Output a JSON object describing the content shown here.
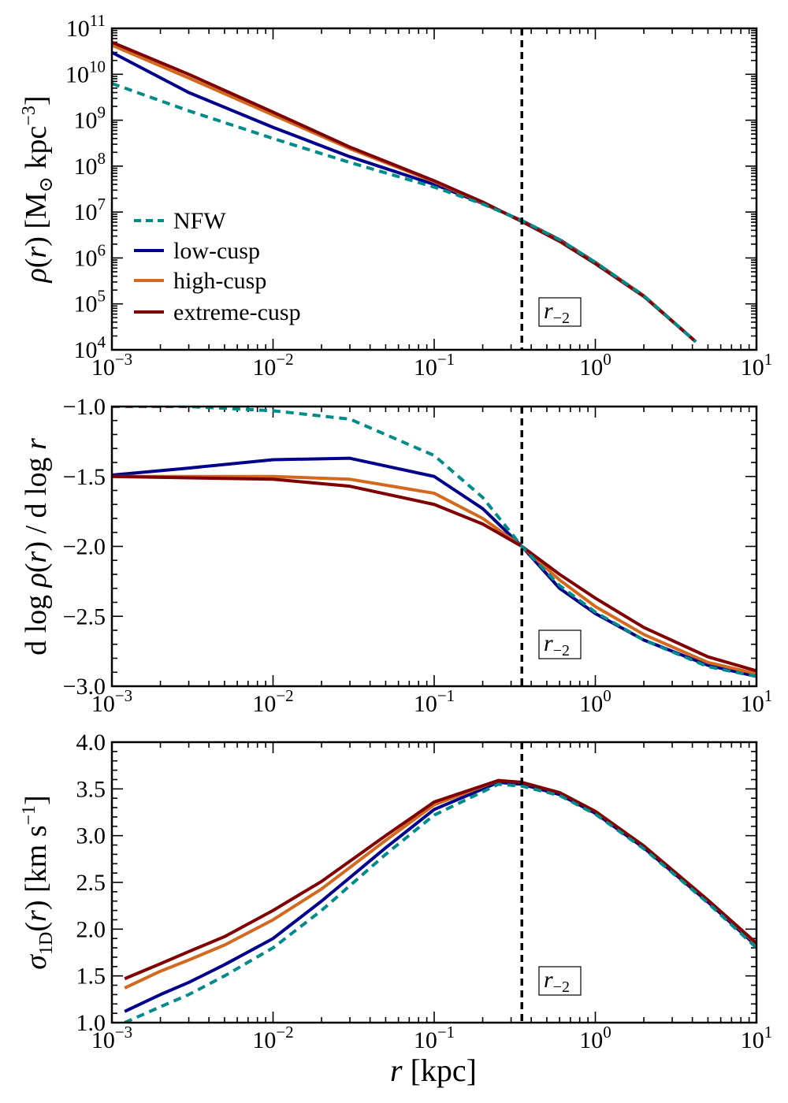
{
  "figure": {
    "xlabel_var": "r",
    "xlabel_unit": " [kpc]",
    "marker_label_main": "r",
    "marker_label_sub": "−2",
    "marker_r": 0.35
  },
  "colors": {
    "NFW": "#008b8b",
    "low-cusp": "#00008b",
    "high-cusp": "#d2691e",
    "extreme-cusp": "#800000"
  },
  "legend": [
    {
      "key": "NFW",
      "label": "NFW",
      "dashed": true
    },
    {
      "key": "low-cusp",
      "label": "low-cusp",
      "dashed": false
    },
    {
      "key": "high-cusp",
      "label": "high-cusp",
      "dashed": false
    },
    {
      "key": "extreme-cusp",
      "label": "extreme-cusp",
      "dashed": false
    }
  ],
  "chart_data": [
    {
      "type": "line",
      "title": "",
      "xscale": "log",
      "yscale": "log",
      "xlim": [
        0.001,
        10
      ],
      "ylim": [
        10000,
        100000000000
      ],
      "ylabel": "ρ(r) [M⊙ kpc−3]",
      "xticks": [
        {
          "base": "10",
          "exp": "−3"
        },
        {
          "base": "10",
          "exp": "−2"
        },
        {
          "base": "10",
          "exp": "−1"
        },
        {
          "base": "10",
          "exp": "0"
        },
        {
          "base": "10",
          "exp": "1"
        }
      ],
      "yticks": [
        {
          "base": "10",
          "exp": "4"
        },
        {
          "base": "10",
          "exp": "5"
        },
        {
          "base": "10",
          "exp": "6"
        },
        {
          "base": "10",
          "exp": "7"
        },
        {
          "base": "10",
          "exp": "8"
        },
        {
          "base": "10",
          "exp": "9"
        },
        {
          "base": "10",
          "exp": "10"
        },
        {
          "base": "10",
          "exp": "11"
        }
      ],
      "x": [
        0.001,
        0.003,
        0.01,
        0.03,
        0.1,
        0.2,
        0.35,
        0.6,
        1,
        2,
        4.2
      ],
      "series": [
        {
          "name": "NFW",
          "values": [
            6300000000.0,
            1600000000.0,
            400000000.0,
            120000000.0,
            35000000.0,
            15000000.0,
            6500000.0,
            2500000.0,
            800000.0,
            150000.0,
            15000.0
          ]
        },
        {
          "name": "low-cusp",
          "values": [
            30000000000.0,
            4000000000.0,
            700000000.0,
            160000000.0,
            40000000.0,
            15500000.0,
            6500000.0,
            2500000.0,
            800000.0,
            150000.0,
            15000.0
          ]
        },
        {
          "name": "high-cusp",
          "values": [
            43000000000.0,
            8300000000.0,
            1300000000.0,
            240000000.0,
            46000000.0,
            16000000.0,
            6300000.0,
            2400000.0,
            780000.0,
            150000.0,
            15000.0
          ]
        },
        {
          "name": "extreme-cusp",
          "values": [
            50000000000.0,
            10000000000.0,
            1500000000.0,
            260000000.0,
            48000000.0,
            16500000.0,
            6200000.0,
            2300000.0,
            750000.0,
            145000.0,
            15000.0
          ]
        }
      ]
    },
    {
      "type": "line",
      "title": "",
      "xscale": "log",
      "yscale": "linear",
      "xlim": [
        0.001,
        10
      ],
      "ylim": [
        -3.0,
        -1.0
      ],
      "ylabel": "d log ρ(r) / d log r",
      "xticks": [
        {
          "base": "10",
          "exp": "−3"
        },
        {
          "base": "10",
          "exp": "−2"
        },
        {
          "base": "10",
          "exp": "−1"
        },
        {
          "base": "10",
          "exp": "0"
        },
        {
          "base": "10",
          "exp": "1"
        }
      ],
      "yticks": [
        {
          "value": -3.0,
          "label": "−3.0"
        },
        {
          "value": -2.5,
          "label": "−2.5"
        },
        {
          "value": -2.0,
          "label": "−2.0"
        },
        {
          "value": -1.5,
          "label": "−1.5"
        },
        {
          "value": -1.0,
          "label": "−1.0"
        }
      ],
      "x": [
        0.001,
        0.003,
        0.01,
        0.03,
        0.1,
        0.2,
        0.35,
        0.6,
        1,
        2,
        5,
        10
      ],
      "series": [
        {
          "name": "NFW",
          "values": [
            -1.0,
            -1.0,
            -1.03,
            -1.09,
            -1.35,
            -1.65,
            -2.0,
            -2.28,
            -2.47,
            -2.67,
            -2.86,
            -2.93
          ]
        },
        {
          "name": "low-cusp",
          "values": [
            -1.49,
            -1.44,
            -1.38,
            -1.37,
            -1.5,
            -1.73,
            -2.0,
            -2.3,
            -2.48,
            -2.67,
            -2.85,
            -2.93
          ]
        },
        {
          "name": "high-cusp",
          "values": [
            -1.5,
            -1.5,
            -1.5,
            -1.52,
            -1.62,
            -1.8,
            -2.0,
            -2.24,
            -2.43,
            -2.63,
            -2.83,
            -2.91
          ]
        },
        {
          "name": "extreme-cusp",
          "values": [
            -1.5,
            -1.51,
            -1.52,
            -1.57,
            -1.7,
            -1.84,
            -2.0,
            -2.2,
            -2.37,
            -2.58,
            -2.79,
            -2.89
          ]
        }
      ]
    },
    {
      "type": "line",
      "title": "",
      "xscale": "log",
      "yscale": "linear",
      "xlim": [
        0.001,
        10
      ],
      "ylim": [
        1.0,
        4.0
      ],
      "ylabel": "σ1D(r) [km s−1]",
      "xticks": [
        {
          "base": "10",
          "exp": "−3"
        },
        {
          "base": "10",
          "exp": "−2"
        },
        {
          "base": "10",
          "exp": "−1"
        },
        {
          "base": "10",
          "exp": "0"
        },
        {
          "base": "10",
          "exp": "1"
        }
      ],
      "yticks": [
        {
          "value": 1.0,
          "label": "1.0"
        },
        {
          "value": 1.5,
          "label": "1.5"
        },
        {
          "value": 2.0,
          "label": "2.0"
        },
        {
          "value": 2.5,
          "label": "2.5"
        },
        {
          "value": 3.0,
          "label": "3.0"
        },
        {
          "value": 3.5,
          "label": "3.5"
        },
        {
          "value": 4.0,
          "label": "4.0"
        }
      ],
      "x": [
        0.0012,
        0.002,
        0.003,
        0.005,
        0.01,
        0.02,
        0.05,
        0.1,
        0.25,
        0.35,
        0.6,
        1,
        2,
        5,
        10
      ],
      "series": [
        {
          "name": "NFW",
          "values": [
            1.0,
            1.17,
            1.3,
            1.5,
            1.8,
            2.2,
            2.8,
            3.22,
            3.55,
            3.53,
            3.43,
            3.23,
            2.86,
            2.28,
            1.8
          ]
        },
        {
          "name": "low-cusp",
          "values": [
            1.12,
            1.3,
            1.43,
            1.62,
            1.9,
            2.3,
            2.87,
            3.28,
            3.57,
            3.55,
            3.44,
            3.24,
            2.87,
            2.29,
            1.82
          ]
        },
        {
          "name": "high-cusp",
          "values": [
            1.37,
            1.55,
            1.67,
            1.83,
            2.1,
            2.43,
            2.95,
            3.33,
            3.59,
            3.57,
            3.46,
            3.26,
            2.89,
            2.31,
            1.84
          ]
        },
        {
          "name": "extreme-cusp",
          "values": [
            1.47,
            1.63,
            1.76,
            1.92,
            2.2,
            2.51,
            3.0,
            3.36,
            3.59,
            3.57,
            3.46,
            3.26,
            2.89,
            2.31,
            1.85
          ]
        }
      ]
    }
  ]
}
